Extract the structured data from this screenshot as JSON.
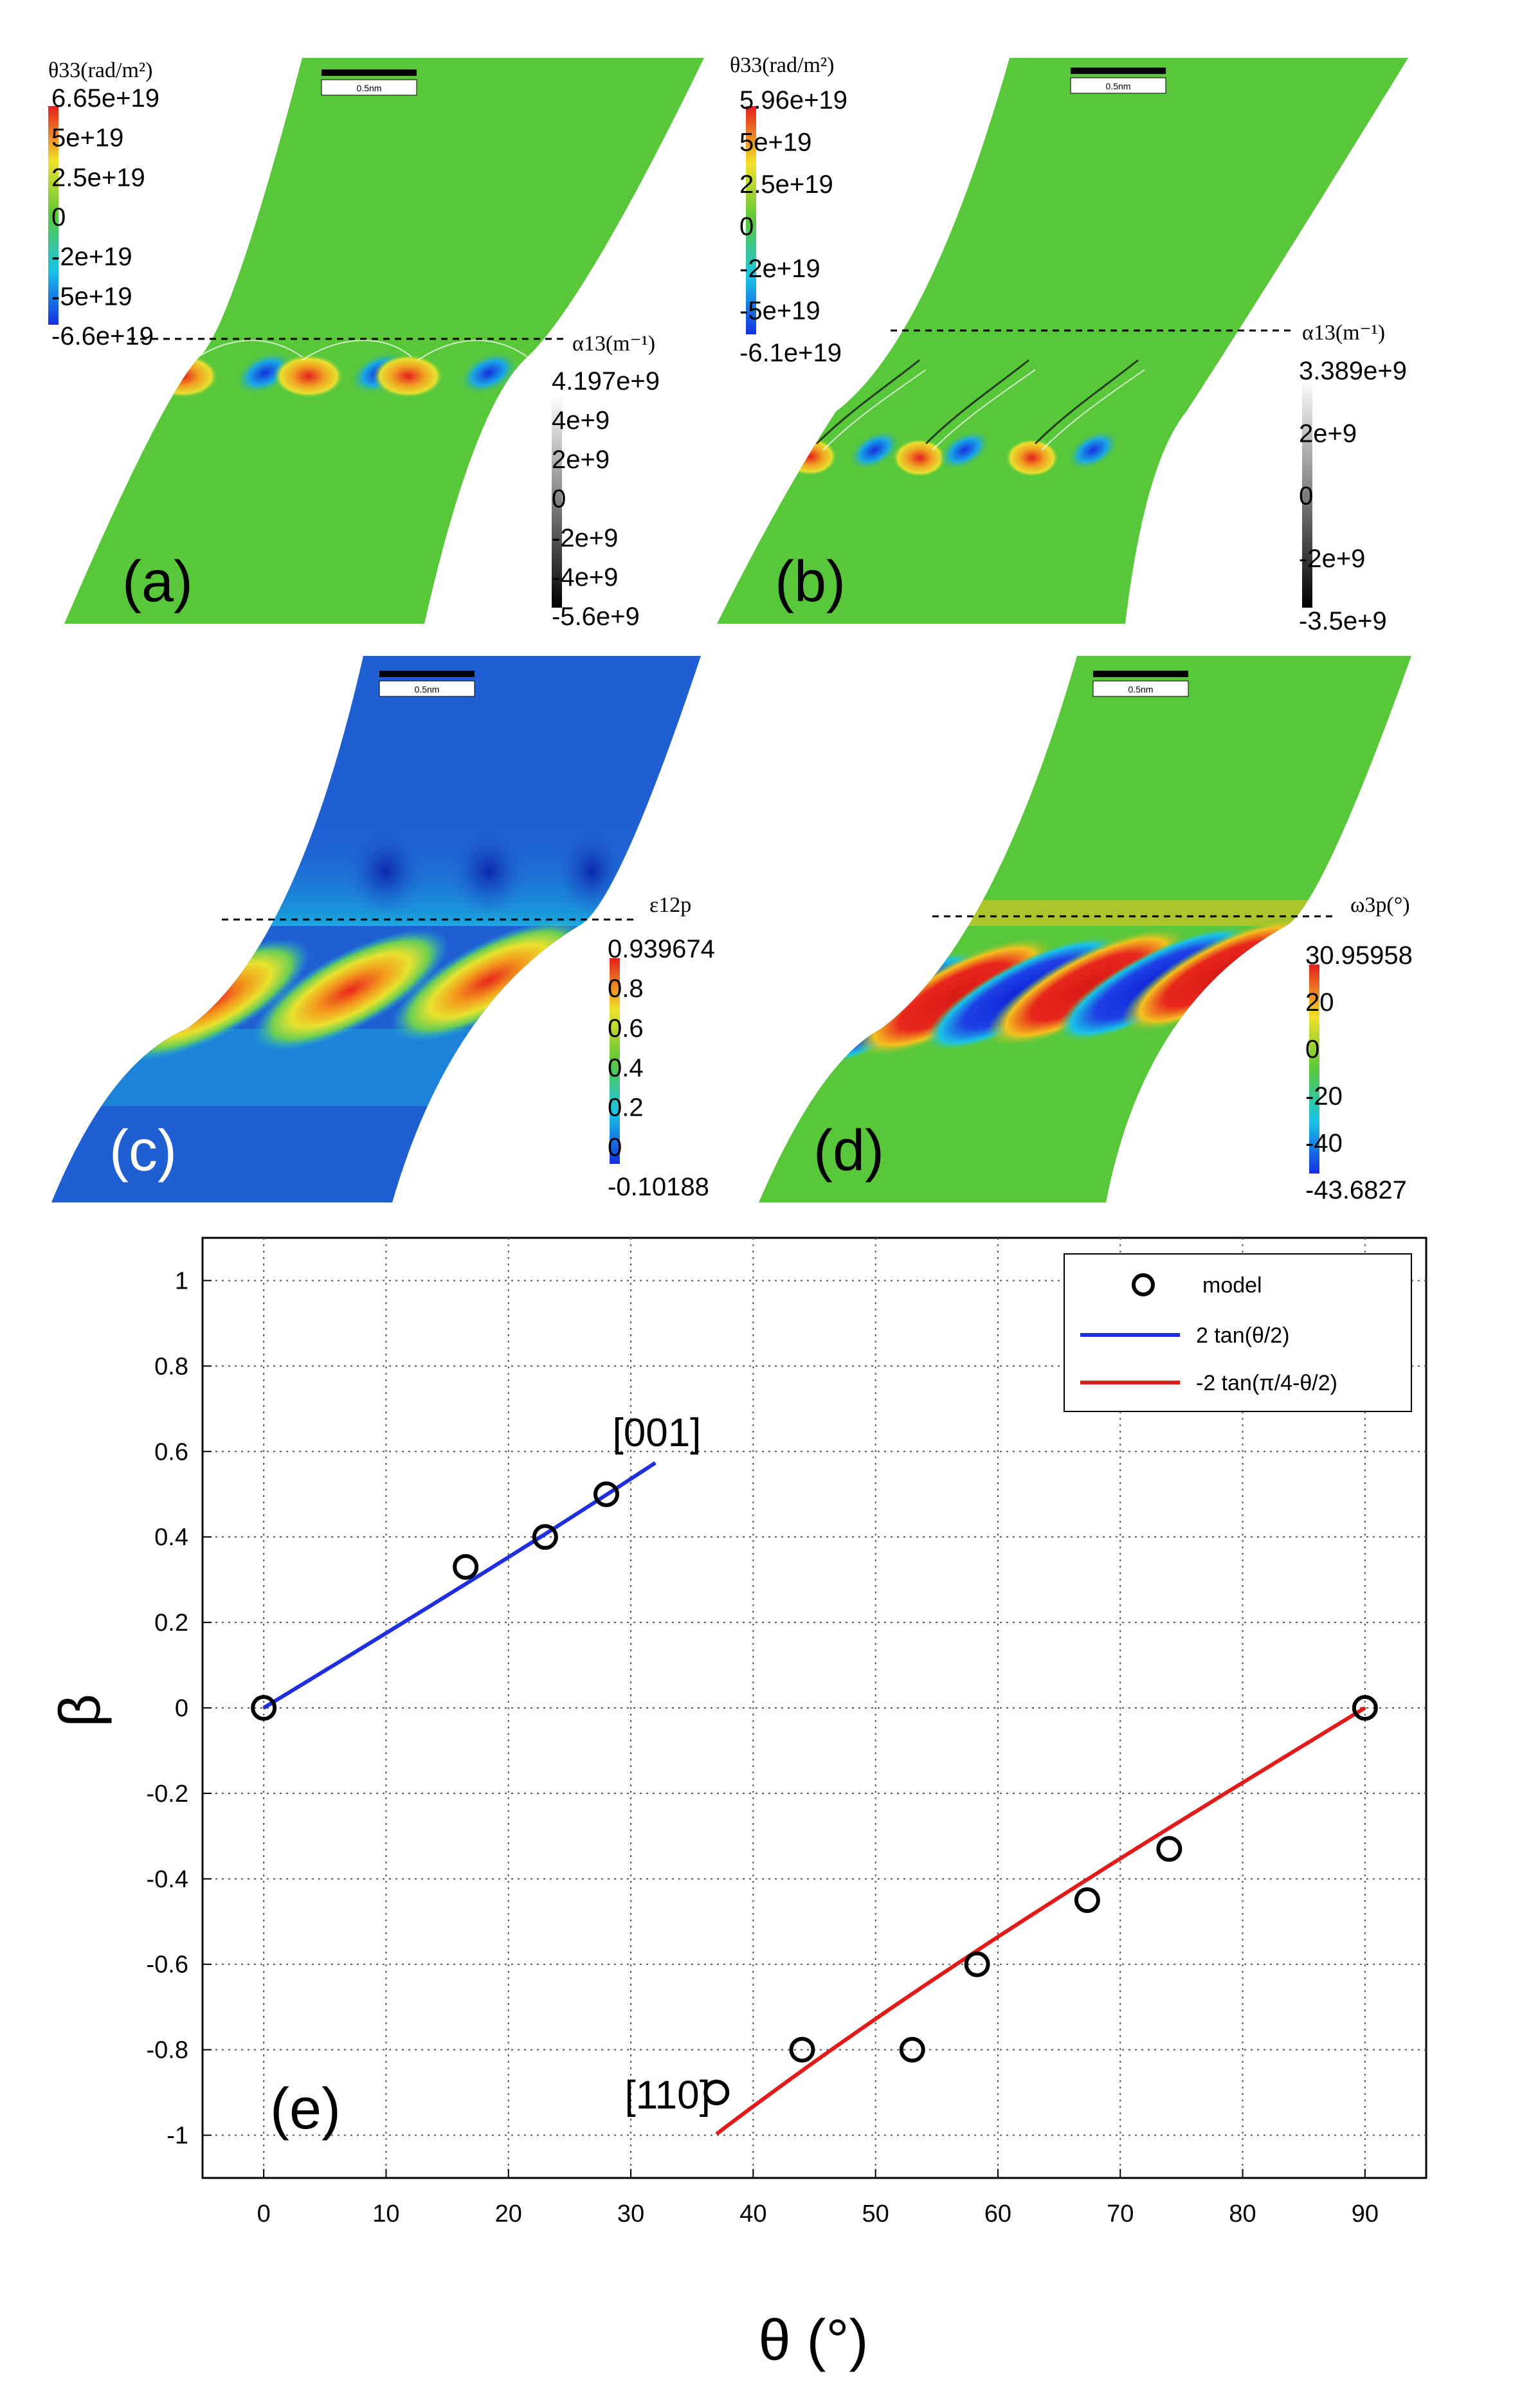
{
  "colors": {
    "green": "#58c73a",
    "blue_bg": "#1f5fd3",
    "red": "#e8261d",
    "blue": "#1334e2",
    "line_blue": "#1f2fe0",
    "line_red": "#e21a1a"
  },
  "panels": {
    "a": {
      "label": "(a)",
      "scale": "0.5nm",
      "cb1": {
        "title": "θ33(rad/m²)",
        "ticks": [
          "6.65e+19",
          "5e+19",
          "2.5e+19",
          "0",
          "-2e+19",
          "-5e+19",
          "-6.6e+19"
        ]
      },
      "cb2": {
        "title": "α13(m⁻¹)",
        "ticks": [
          "4.197e+9",
          "4e+9",
          "2e+9",
          "0",
          "-2e+9",
          "-4e+9",
          "-5.6e+9"
        ]
      }
    },
    "b": {
      "label": "(b)",
      "scale": "0.5nm",
      "cb1": {
        "title": "θ33(rad/m²)",
        "ticks": [
          "5.96e+19",
          "5e+19",
          "2.5e+19",
          "0",
          "-2e+19",
          "-5e+19",
          "-6.1e+19"
        ]
      },
      "cb2": {
        "title": "α13(m⁻¹)",
        "ticks": [
          "3.389e+9",
          "2e+9",
          "0",
          "-2e+9",
          "-3.5e+9"
        ]
      }
    },
    "c": {
      "label": "(c)",
      "scale": "0.5nm",
      "cb": {
        "title": "ε12p",
        "ticks": [
          "0.939674",
          "0.8",
          "0.6",
          "0.4",
          "0.2",
          "0",
          "-0.10188"
        ]
      }
    },
    "d": {
      "label": "(d)",
      "scale": "0.5nm",
      "cb": {
        "title": "ω3p(°)",
        "ticks": [
          "30.95958",
          "20",
          "0",
          "-20",
          "-40",
          "-43.6827"
        ]
      }
    }
  },
  "chart_data": {
    "type": "scatter",
    "panel_label": "(e)",
    "title": "",
    "xlabel": "θ (°)",
    "ylabel": "β",
    "xlim": [
      -5,
      95
    ],
    "ylim": [
      -1.1,
      1.1
    ],
    "xticks": [
      0,
      10,
      20,
      30,
      40,
      50,
      60,
      70,
      80,
      90
    ],
    "yticks": [
      1,
      0.8,
      0.6,
      0.4,
      0.2,
      0,
      -0.2,
      -0.4,
      -0.6,
      -0.8,
      -1
    ],
    "ytick_labels": [
      "1",
      "0.8",
      "0.6",
      "0.4",
      "0.2",
      "0",
      "-0.2",
      "-0.4",
      "-0.6",
      "-0.8",
      "-1"
    ],
    "grid": true,
    "legend_position": "top-right",
    "series": [
      {
        "name": "model",
        "kind": "markers",
        "points": [
          [
            0,
            0
          ],
          [
            16.5,
            0.33
          ],
          [
            23,
            0.4
          ],
          [
            28,
            0.5
          ],
          [
            37,
            -0.9
          ],
          [
            44,
            -0.8
          ],
          [
            53,
            -0.8
          ],
          [
            58.3,
            -0.6
          ],
          [
            67.3,
            -0.45
          ],
          [
            74,
            -0.33
          ],
          [
            90,
            0
          ]
        ]
      },
      {
        "name": "2 tan(θ/2)",
        "kind": "line",
        "color": "#1f2fe0",
        "x_range": [
          0,
          32
        ]
      },
      {
        "name": "-2 tan(π/4-θ/2)",
        "kind": "line",
        "color": "#e21a1a",
        "x_range": [
          37,
          90
        ]
      }
    ],
    "annotations": [
      {
        "text": "[001]",
        "x": 28.5,
        "y": 0.65
      },
      {
        "text": "[110]",
        "x": 29.5,
        "y": -0.9
      }
    ]
  }
}
